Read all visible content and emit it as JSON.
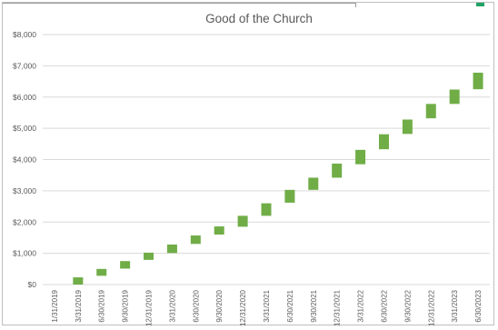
{
  "chart_data": {
    "type": "bar",
    "subtype": "floating-range",
    "title": "Good of the Church",
    "xlabel": "",
    "ylabel": "",
    "ylim": [
      0,
      8000
    ],
    "ytick_step": 1000,
    "ytick_labels": [
      "$0",
      "$1,000",
      "$2,000",
      "$3,000",
      "$4,000",
      "$5,000",
      "$6,000",
      "$7,000",
      "$8,000"
    ],
    "grid": true,
    "legend": "none",
    "color": "#70ad47",
    "categories": [
      "1/31/2019",
      "3/31/2019",
      "6/30/2019",
      "9/30/2019",
      "12/31/2019",
      "3/31/2020",
      "6/30/2020",
      "9/30/2020",
      "12/31/2020",
      "3/31/2021",
      "6/30/2021",
      "9/30/2021",
      "12/31/2021",
      "3/31/2022",
      "6/30/2022",
      "9/30/2022",
      "12/31/2022",
      "3/31/2023",
      "6/30/2023"
    ],
    "low": [
      null,
      0,
      280,
      510,
      790,
      1010,
      1300,
      1600,
      1850,
      2200,
      2620,
      3030,
      3420,
      3850,
      4330,
      4820,
      5320,
      5780,
      6250
    ],
    "high": [
      null,
      230,
      500,
      750,
      1020,
      1280,
      1570,
      1860,
      2200,
      2600,
      3030,
      3420,
      3870,
      4310,
      4810,
      5280,
      5780,
      6240,
      6780
    ]
  }
}
